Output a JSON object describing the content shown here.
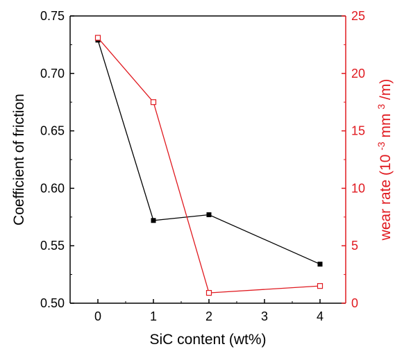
{
  "chart_data": {
    "type": "line",
    "categories": [
      "0",
      "1",
      "2",
      "4"
    ],
    "x_ticks": [
      "0",
      "1",
      "2",
      "3",
      "4"
    ],
    "xlabel": "SiC content (wt%)",
    "ylabel": "Coefficient of friction",
    "y2label_prefix": "wear rate (10",
    "y2label_sup": "-3",
    "y2label_mid": " mm",
    "y2label_sup2": "3",
    "y2label_suffix": "/m)",
    "ylim": [
      0.5,
      0.75
    ],
    "y_ticks": [
      "0.50",
      "0.55",
      "0.60",
      "0.65",
      "0.70",
      "0.75"
    ],
    "y2lim": [
      0,
      25
    ],
    "y2_ticks": [
      "0",
      "5",
      "10",
      "15",
      "20",
      "25"
    ],
    "grid": false,
    "series": [
      {
        "axis": "left",
        "color": "#000000",
        "marker": "filled-square",
        "values": [
          0.729,
          0.572,
          0.577,
          0.534
        ]
      },
      {
        "axis": "right",
        "color": "#e0191f",
        "marker": "open-square",
        "values": [
          23.1,
          17.5,
          0.9,
          1.5
        ]
      }
    ]
  }
}
